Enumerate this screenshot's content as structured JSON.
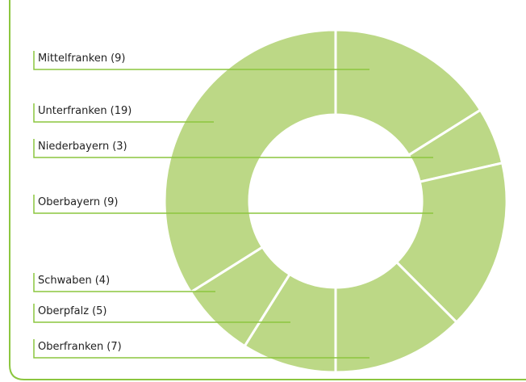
{
  "chart_data": {
    "type": "donut",
    "categories": [
      "Mittelfranken",
      "Niederbayern",
      "Oberbayern",
      "Oberfranken",
      "Oberpfalz",
      "Schwaben",
      "Unterfranken"
    ],
    "values": [
      9,
      3,
      9,
      7,
      5,
      4,
      19
    ],
    "value_labels": [
      "(9)",
      "(3)",
      "(9)",
      "(7)",
      "(5)",
      "(4)",
      "(19)"
    ],
    "color": "#bcd886",
    "line_color": "#8cc63f"
  }
}
